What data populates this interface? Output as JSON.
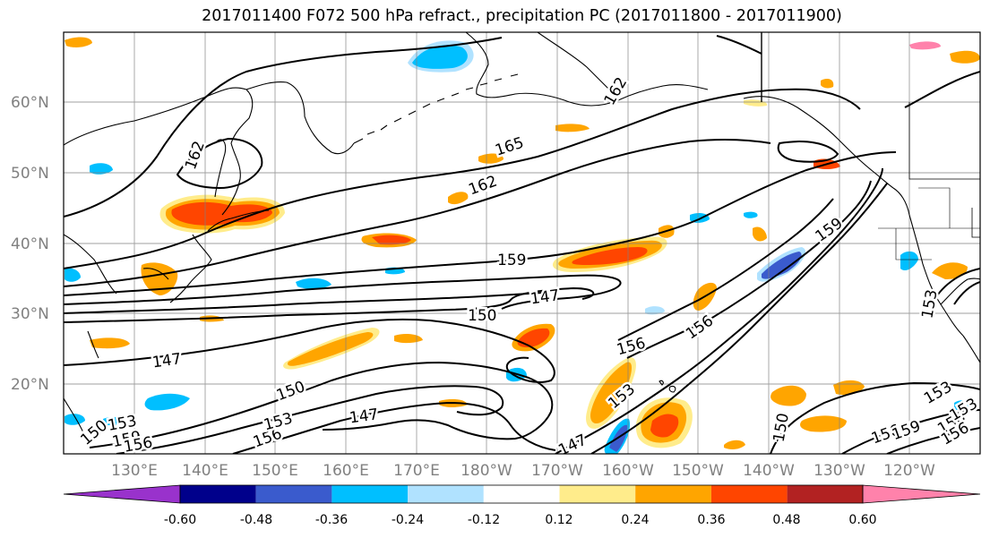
{
  "title": "2017011400 F072 500 hPa refract., precipitation PC (2017011800 - 2017011900)",
  "latitude_labels": [
    "60°N",
    "50°N",
    "40°N",
    "30°N",
    "20°N"
  ],
  "longitude_labels": [
    "130°E",
    "140°E",
    "150°E",
    "160°E",
    "170°E",
    "180°W",
    "170°W",
    "160°W",
    "150°W",
    "140°W",
    "130°W",
    "120°W"
  ],
  "contour_labels": [
    "165",
    "162",
    "159",
    "156",
    "153",
    "150",
    "147",
    "162",
    "159",
    "156",
    "153",
    "150",
    "147",
    "156",
    "153",
    "150",
    "147",
    "153",
    "156",
    "159",
    "150",
    "147",
    "162",
    "156",
    "156",
    "153",
    "153",
    "159",
    "156"
  ],
  "colorbar": {
    "tick_labels": [
      "-0.60",
      "-0.48",
      "-0.36",
      "-0.24",
      "-0.12",
      "0.12",
      "0.24",
      "0.36",
      "0.48",
      "0.60"
    ],
    "colors": [
      "#9932cc",
      "#00008b",
      "#3a5bcd",
      "#00bfff",
      "#b0e2ff",
      "#ffffff",
      "#ffec8b",
      "#ffa500",
      "#ff4500",
      "#b22222",
      "#ff82ab"
    ]
  },
  "colors": {
    "contour": "#000000",
    "coastline": "#000000",
    "grid": "#808080"
  }
}
